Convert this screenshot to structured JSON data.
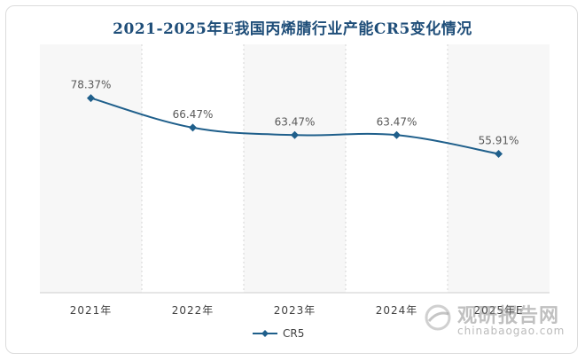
{
  "chart_data": {
    "type": "line",
    "title": "2021-2025年E我国丙烯腈行业产能CR5变化情况",
    "categories": [
      "2021年",
      "2022年",
      "2023年",
      "2024年",
      "2025年E"
    ],
    "series": [
      {
        "name": "CR5",
        "values": [
          78.37,
          66.47,
          63.47,
          63.47,
          55.91
        ],
        "color": "#1f5f8b"
      }
    ],
    "data_labels": [
      "78.37%",
      "66.47%",
      "63.47%",
      "63.47%",
      "55.91%"
    ],
    "ylim": [
      0,
      100
    ],
    "legend_position": "bottom",
    "grid": false,
    "band_colors": [
      "#f7f7f7",
      "#ffffff"
    ]
  },
  "watermark": {
    "name": "观研报告网",
    "url": "chinabaogao.com",
    "icon": "watermark-logo-icon"
  }
}
